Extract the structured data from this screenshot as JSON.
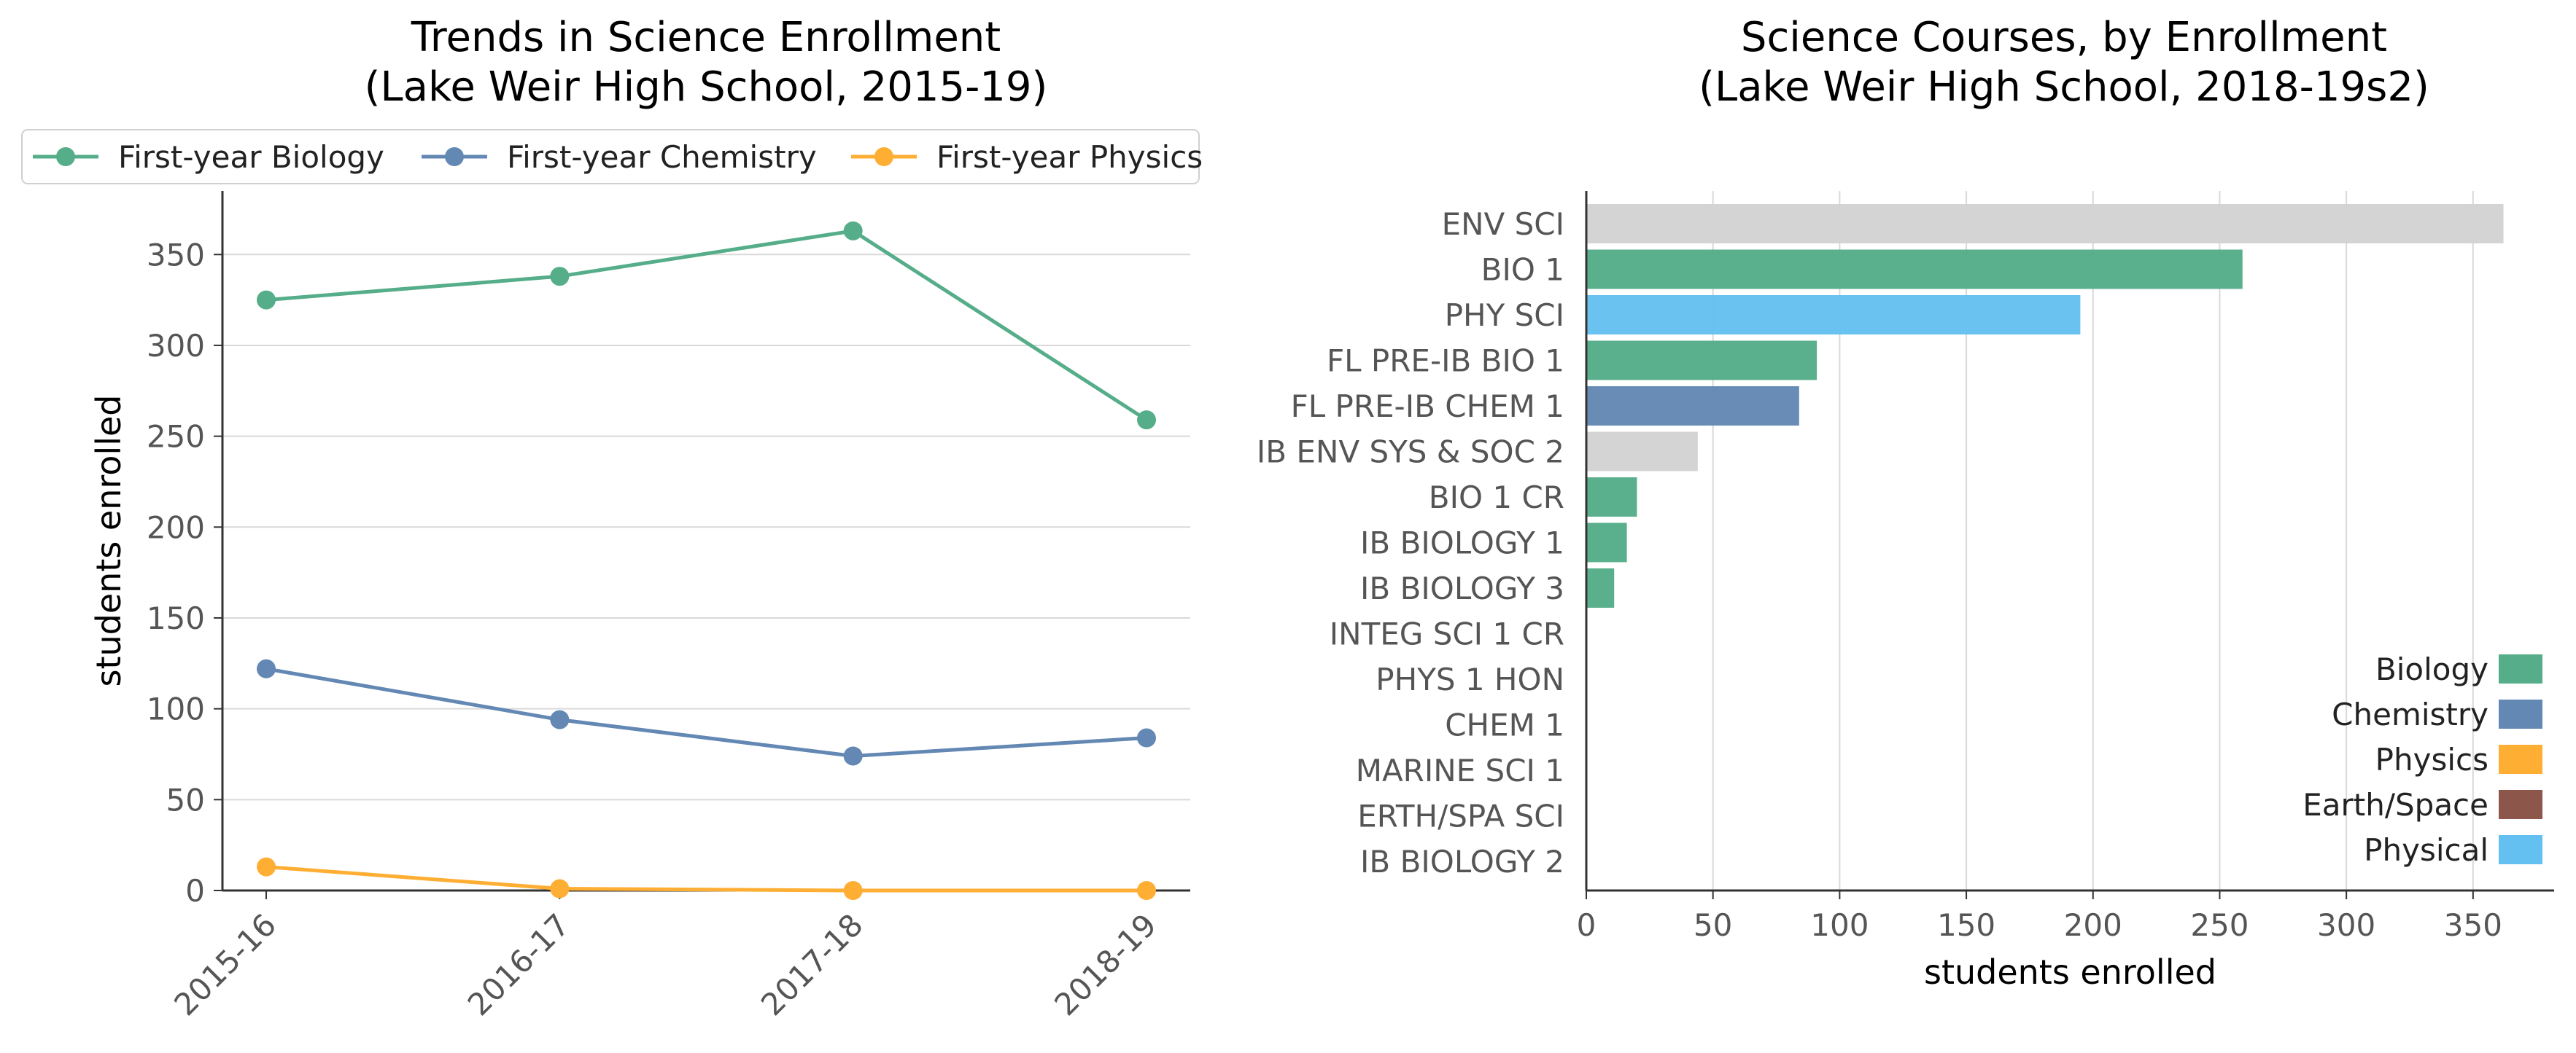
{
  "chart_data": [
    {
      "type": "line",
      "title": "Trends in Science Enrollment\n(Lake Weir High School, 2015-19)",
      "xlabel": "",
      "ylabel": "students enrolled",
      "categories": [
        "2015-16",
        "2016-17",
        "2017-18",
        "2018-19"
      ],
      "ylim": [
        0,
        385
      ],
      "yticks": [
        0,
        50,
        100,
        150,
        200,
        250,
        300,
        350
      ],
      "grid": "horizontal",
      "legend": "top",
      "series": [
        {
          "name": "First-year Biology",
          "color": "#55ad89",
          "values": [
            325,
            338,
            363,
            259
          ]
        },
        {
          "name": "First-year Chemistry",
          "color": "#6388b4",
          "values": [
            122,
            94,
            74,
            84
          ]
        },
        {
          "name": "First-year Physics",
          "color": "#ffae34",
          "values": [
            13,
            1,
            0,
            0
          ]
        }
      ]
    },
    {
      "type": "bar",
      "orientation": "horizontal",
      "title": "Science Courses, by Enrollment\n(Lake Weir High School, 2018-19s2)",
      "xlabel": "students enrolled",
      "ylabel": "",
      "xlim": [
        0,
        382
      ],
      "xticks": [
        0,
        50,
        100,
        150,
        200,
        250,
        300,
        350
      ],
      "grid": "vertical",
      "legend": "lower-right",
      "categories": [
        "ENV SCI",
        "BIO 1",
        "PHY SCI",
        "FL PRE-IB BIO 1",
        "FL PRE-IB CHEM 1",
        "IB ENV SYS & SOC 2",
        "BIO 1 CR",
        "IB BIOLOGY 1",
        "IB BIOLOGY 3",
        "INTEG SCI 1 CR",
        "PHYS 1 HON",
        "CHEM 1",
        "MARINE SCI 1",
        "ERTH/SPA SCI",
        "IB BIOLOGY 2"
      ],
      "values": [
        362,
        259,
        195,
        91,
        84,
        44,
        20,
        16,
        11,
        0,
        0,
        0,
        0,
        0,
        0
      ],
      "bar_colors": [
        "#d3d3d3",
        "#55ad89",
        "#64c0f0",
        "#55ad89",
        "#6388b4",
        "#d3d3d3",
        "#55ad89",
        "#55ad89",
        "#55ad89",
        "#d3d3d3",
        "#ffae34",
        "#6388b4",
        "#d3d3d3",
        "#8c564b",
        "#55ad89"
      ],
      "legend_entries": [
        {
          "name": "Biology",
          "color": "#55ad89"
        },
        {
          "name": "Chemistry",
          "color": "#6388b4"
        },
        {
          "name": "Physics",
          "color": "#ffae34"
        },
        {
          "name": "Earth/Space",
          "color": "#8c564b"
        },
        {
          "name": "Physical",
          "color": "#64c0f0"
        }
      ]
    }
  ]
}
